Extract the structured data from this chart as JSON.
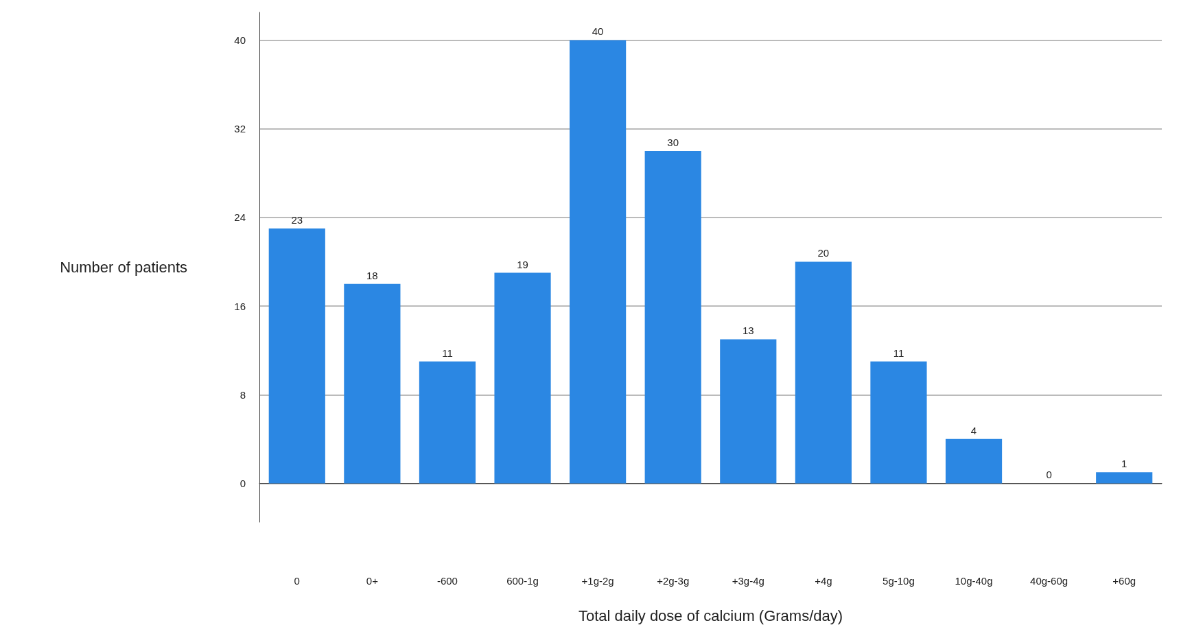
{
  "chart_data": {
    "type": "bar",
    "xlabel": "Total daily dose of calcium (Grams/day)",
    "ylabel": "Number of patients",
    "categories": [
      "0",
      "0+",
      "-600",
      "600-1g",
      "+1g-2g",
      "+2g-3g",
      "+3g-4g",
      "+4g",
      "5g-10g",
      "10g-40g",
      "40g-60g",
      "+60g"
    ],
    "values": [
      23,
      18,
      11,
      19,
      40,
      30,
      13,
      20,
      11,
      4,
      0,
      1
    ],
    "color": "#2b87e3",
    "ylim": [
      -3.5,
      42.5
    ],
    "yticks": [
      0,
      8,
      16,
      24,
      32,
      40
    ],
    "grid": "y",
    "data_labels": true
  }
}
